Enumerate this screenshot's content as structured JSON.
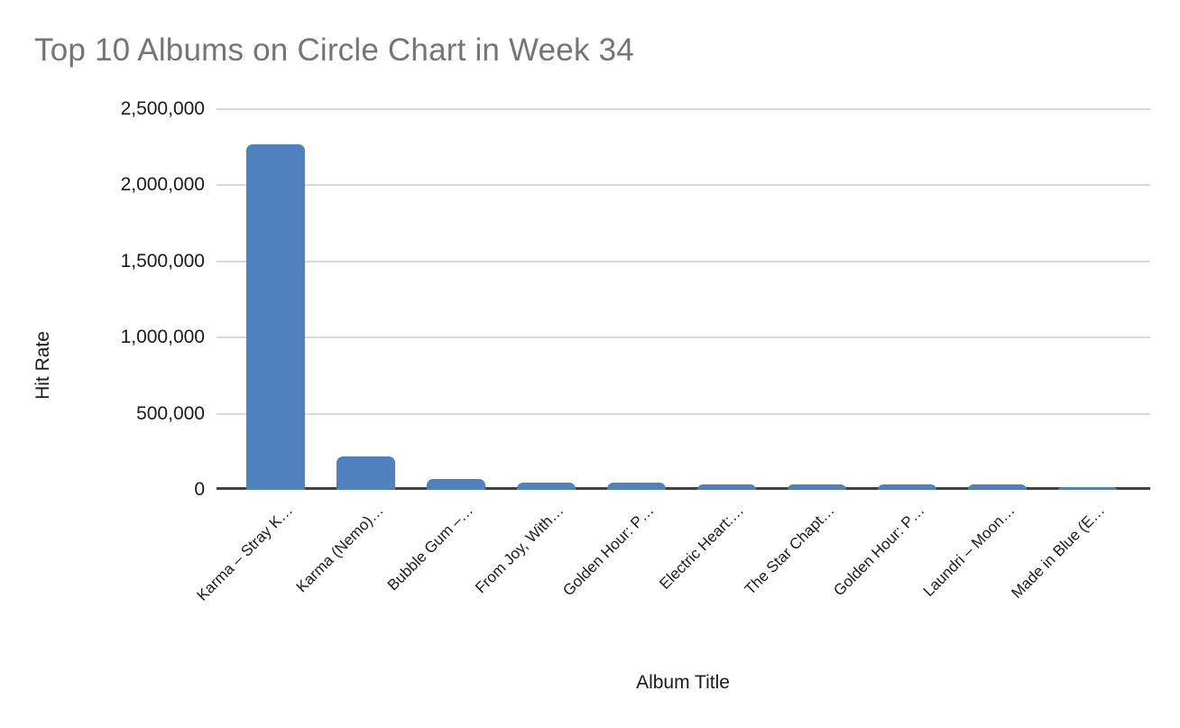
{
  "title": "Top 10 Albums on Circle Chart in Week 34",
  "chart_data": {
    "type": "bar",
    "title": "Top 10 Albums on Circle Chart in Week 34",
    "xlabel": "Album Title",
    "ylabel": "Hit Rate",
    "categories": [
      "Karma – Stray K…",
      "Karma (Nemo)…",
      "Bubble Gum –…",
      "From Joy, With…",
      "Golden Hour: P…",
      "Electric Heart:…",
      "The Star Chapt…",
      "Golden Hour: P…",
      "Laundri – Moon…",
      "Made in Blue (E…"
    ],
    "values": [
      2270000,
      220000,
      70000,
      45000,
      45000,
      35000,
      35000,
      33000,
      33000,
      20000
    ],
    "ylim": [
      0,
      2500000
    ],
    "ytick_interval": 500000,
    "ytick_labels": [
      "0",
      "500,000",
      "1,000,000",
      "1,500,000",
      "2,000,000",
      "2,500,000"
    ],
    "grid": true,
    "legend": false,
    "colors": {
      "bar": "#4E81BD",
      "title_text": "#757575",
      "axis_text": "#1a1a1a",
      "gridline": "#d9d9d9",
      "axis_line": "#424242"
    }
  }
}
